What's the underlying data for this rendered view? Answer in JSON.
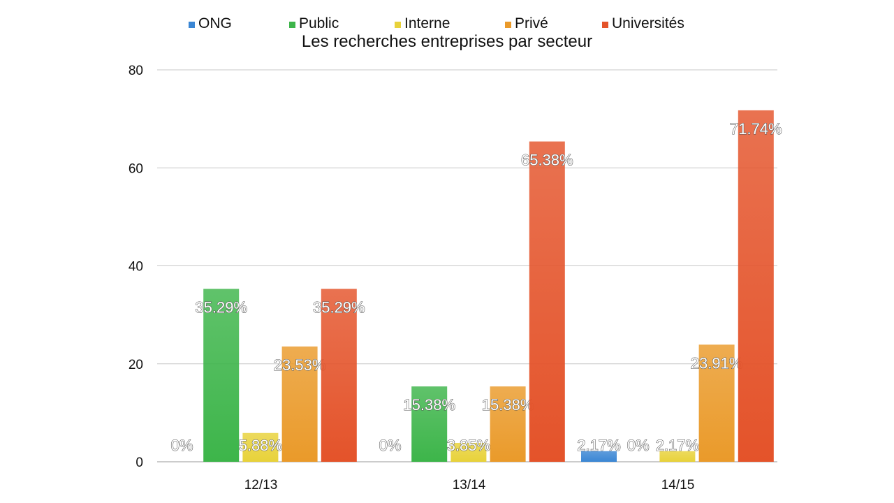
{
  "chart_data": {
    "type": "bar",
    "title": "Les recherches entreprises par secteur",
    "categories": [
      "12/13",
      "13/14",
      "14/15"
    ],
    "series": [
      {
        "name": "ONG",
        "values": [
          0,
          0,
          2.17
        ],
        "labels": [
          "0%",
          "0%",
          "2.17%"
        ],
        "color": "#3a86d4"
      },
      {
        "name": "Public",
        "values": [
          35.29,
          15.38,
          0
        ],
        "labels": [
          "35.29%",
          "15.38%",
          "0%"
        ],
        "color": "#3db54a"
      },
      {
        "name": "Interne",
        "values": [
          5.88,
          3.85,
          2.17
        ],
        "labels": [
          "5.88%",
          "3.85%",
          "2.17%"
        ],
        "color": "#e8d23a"
      },
      {
        "name": "Privé",
        "values": [
          23.53,
          15.38,
          23.91
        ],
        "labels": [
          "23.53%",
          "15.38%",
          "23.91%"
        ],
        "color": "#ea9a2a"
      },
      {
        "name": "Universités",
        "values": [
          35.29,
          65.38,
          71.74
        ],
        "labels": [
          "35.29%",
          "65.38%",
          "71.74%"
        ],
        "color": "#e4532a"
      }
    ],
    "yticks": [
      0,
      20,
      40,
      60,
      80
    ],
    "ylim": [
      0,
      80
    ],
    "grid": true,
    "legend_position": "top"
  }
}
